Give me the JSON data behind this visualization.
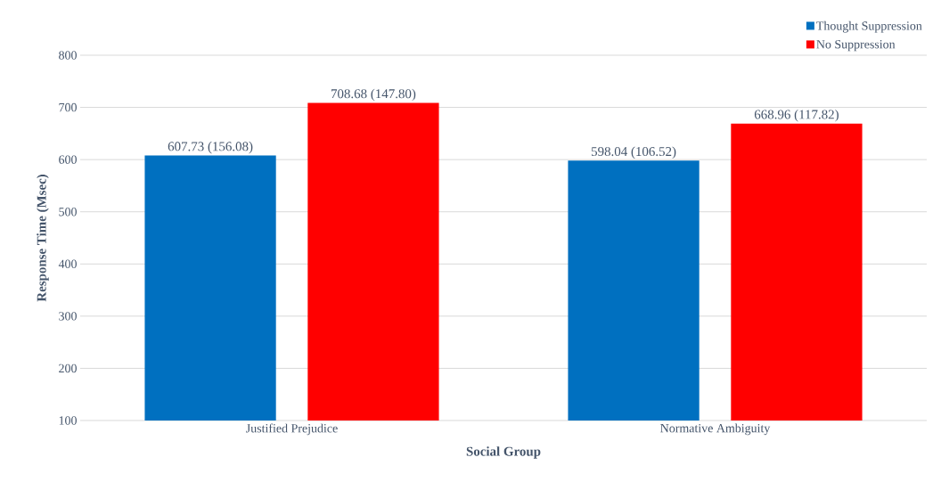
{
  "chart_data": {
    "type": "bar",
    "xlabel": "Social Group",
    "ylabel": "Response Time (Msec)",
    "categories": [
      "Justified Prejudice",
      "Normative Ambiguity"
    ],
    "series": [
      {
        "name": "Thought Suppression",
        "color": "#0070c0",
        "values": [
          607.73,
          598.04
        ],
        "value_labels": [
          "607.73 (156.08)",
          "598.04 (106.52)"
        ]
      },
      {
        "name": "No Suppression",
        "color": "#ff0000",
        "values": [
          708.68,
          668.96
        ],
        "value_labels": [
          "708.68 (147.80)",
          "668.96 (117.82)"
        ]
      }
    ],
    "ylim": [
      100,
      800
    ],
    "yticks": [
      100,
      200,
      300,
      400,
      500,
      600,
      700,
      800
    ],
    "grid": "y",
    "legend": "top right"
  }
}
